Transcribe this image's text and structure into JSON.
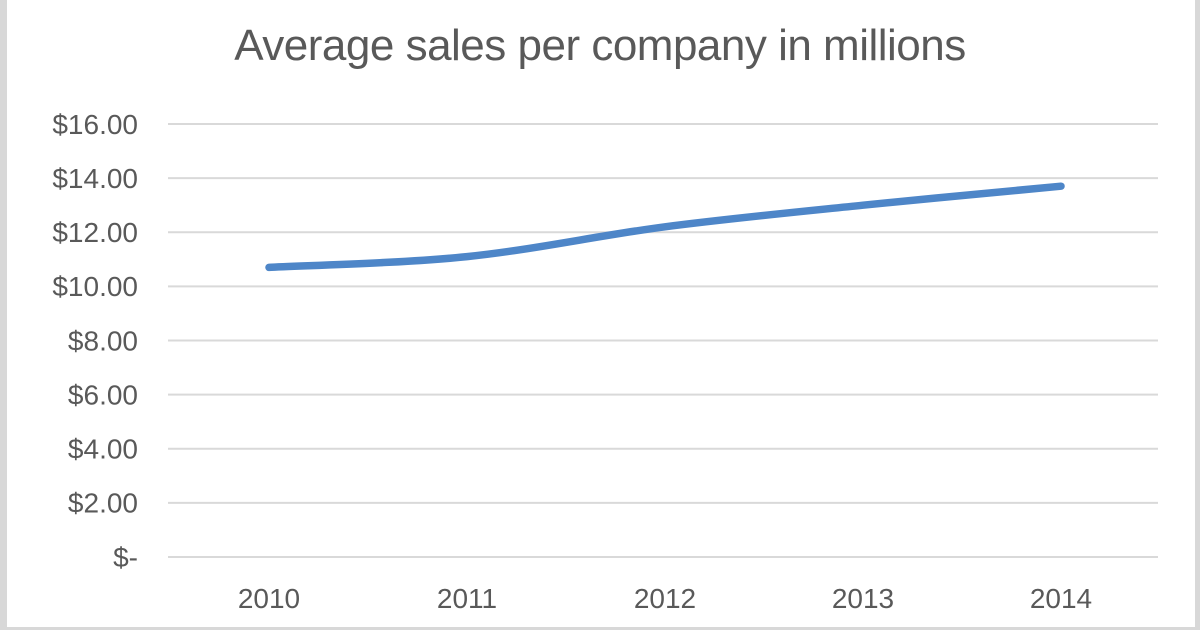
{
  "chart_data": {
    "type": "line",
    "title": "Average sales per company in millions",
    "categories": [
      "2010",
      "2011",
      "2012",
      "2013",
      "2014"
    ],
    "series": [
      {
        "name": "Average sales per company",
        "values": [
          10.7,
          11.1,
          12.2,
          13.0,
          13.7
        ]
      }
    ],
    "xlabel": "",
    "ylabel": "",
    "ylim": [
      0,
      16
    ],
    "ytick_step": 2,
    "ytick_labels": [
      "$16.00",
      "$14.00",
      "$12.00",
      "$10.00",
      "$8.00",
      "$6.00",
      "$4.00",
      "$2.00",
      "$-"
    ],
    "grid": true,
    "legend_position": "none",
    "smoothed_line": true,
    "colors": {
      "line": "#4e86c8",
      "gridline": "#d9d9d9",
      "text": "#595959",
      "background": "#ffffff",
      "frame_edge": "#d8d8d8"
    }
  }
}
